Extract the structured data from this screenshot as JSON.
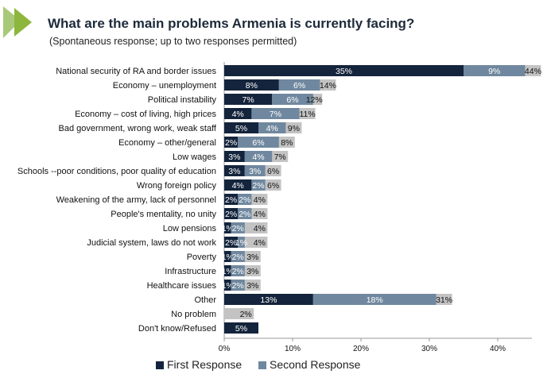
{
  "chart_data": {
    "type": "bar",
    "orientation": "horizontal",
    "stacked": true,
    "title": "What are the main problems Armenia is currently facing?",
    "subtitle": "(Spontaneous response; up to two responses permitted)",
    "categories": [
      "National security of RA and border issues",
      "Economy – unemployment",
      "Political instability",
      "Economy – cost of living, high prices",
      "Bad government, wrong work, weak staff",
      "Economy – other/general",
      "Low wages",
      "Schools --poor conditions, poor quality of education",
      "Wrong foreign policy",
      "Weakening of the army, lack of personnel",
      "People's mentality, no unity",
      "Low pensions",
      "Judicial system, laws do not work",
      "Poverty",
      "Infrastructure",
      "Healthcare issues",
      "Other",
      "No problem",
      "Don't know/Refused"
    ],
    "series": [
      {
        "name": "First Response",
        "color": "#14243c",
        "values": [
          35,
          8,
          7,
          4,
          5,
          2,
          3,
          3,
          4,
          2,
          2,
          1,
          2,
          1,
          1,
          1,
          13,
          null,
          5
        ],
        "labels": [
          "35%",
          "8%",
          "7%",
          "4%",
          "5%",
          "2%",
          "3%",
          "3%",
          "4%",
          "2%",
          "2%",
          "1%",
          "2%",
          "1%",
          "1%",
          "1%",
          "13%",
          "",
          "5%"
        ]
      },
      {
        "name": "Second Response",
        "color": "#70889f",
        "values": [
          9,
          6,
          6,
          7,
          4,
          6,
          4,
          3,
          2,
          2,
          2,
          2,
          1,
          2,
          2,
          2,
          18,
          null,
          null
        ],
        "labels": [
          "9%",
          "6%",
          "6%",
          "7%",
          "4%",
          "6%",
          "4%",
          "3%",
          "2%",
          "2%",
          "2%",
          "2%",
          "1%",
          "2%",
          "2%",
          "2%",
          "18%",
          "",
          ""
        ]
      }
    ],
    "totals": {
      "color": "#c3c3c3",
      "values": [
        44,
        14,
        12,
        11,
        9,
        8,
        7,
        6,
        6,
        4,
        4,
        4,
        4,
        3,
        3,
        3,
        31,
        2,
        null
      ],
      "labels": [
        "44%",
        "14%",
        "12%",
        "11%",
        "9%",
        "8%",
        "7%",
        "6%",
        "6%",
        "4%",
        "4%",
        "4%",
        "4%",
        "3%",
        "3%",
        "3%",
        "31%",
        "2%",
        ""
      ]
    },
    "xlim": [
      0,
      45
    ],
    "xticks": [
      0,
      10,
      20,
      30,
      40
    ],
    "xtick_labels": [
      "0%",
      "10%",
      "20%",
      "30%",
      "40%"
    ],
    "legend": {
      "position": "bottom",
      "entries": [
        "First Response",
        "Second Response"
      ]
    },
    "accent_color": "#8db63c"
  }
}
